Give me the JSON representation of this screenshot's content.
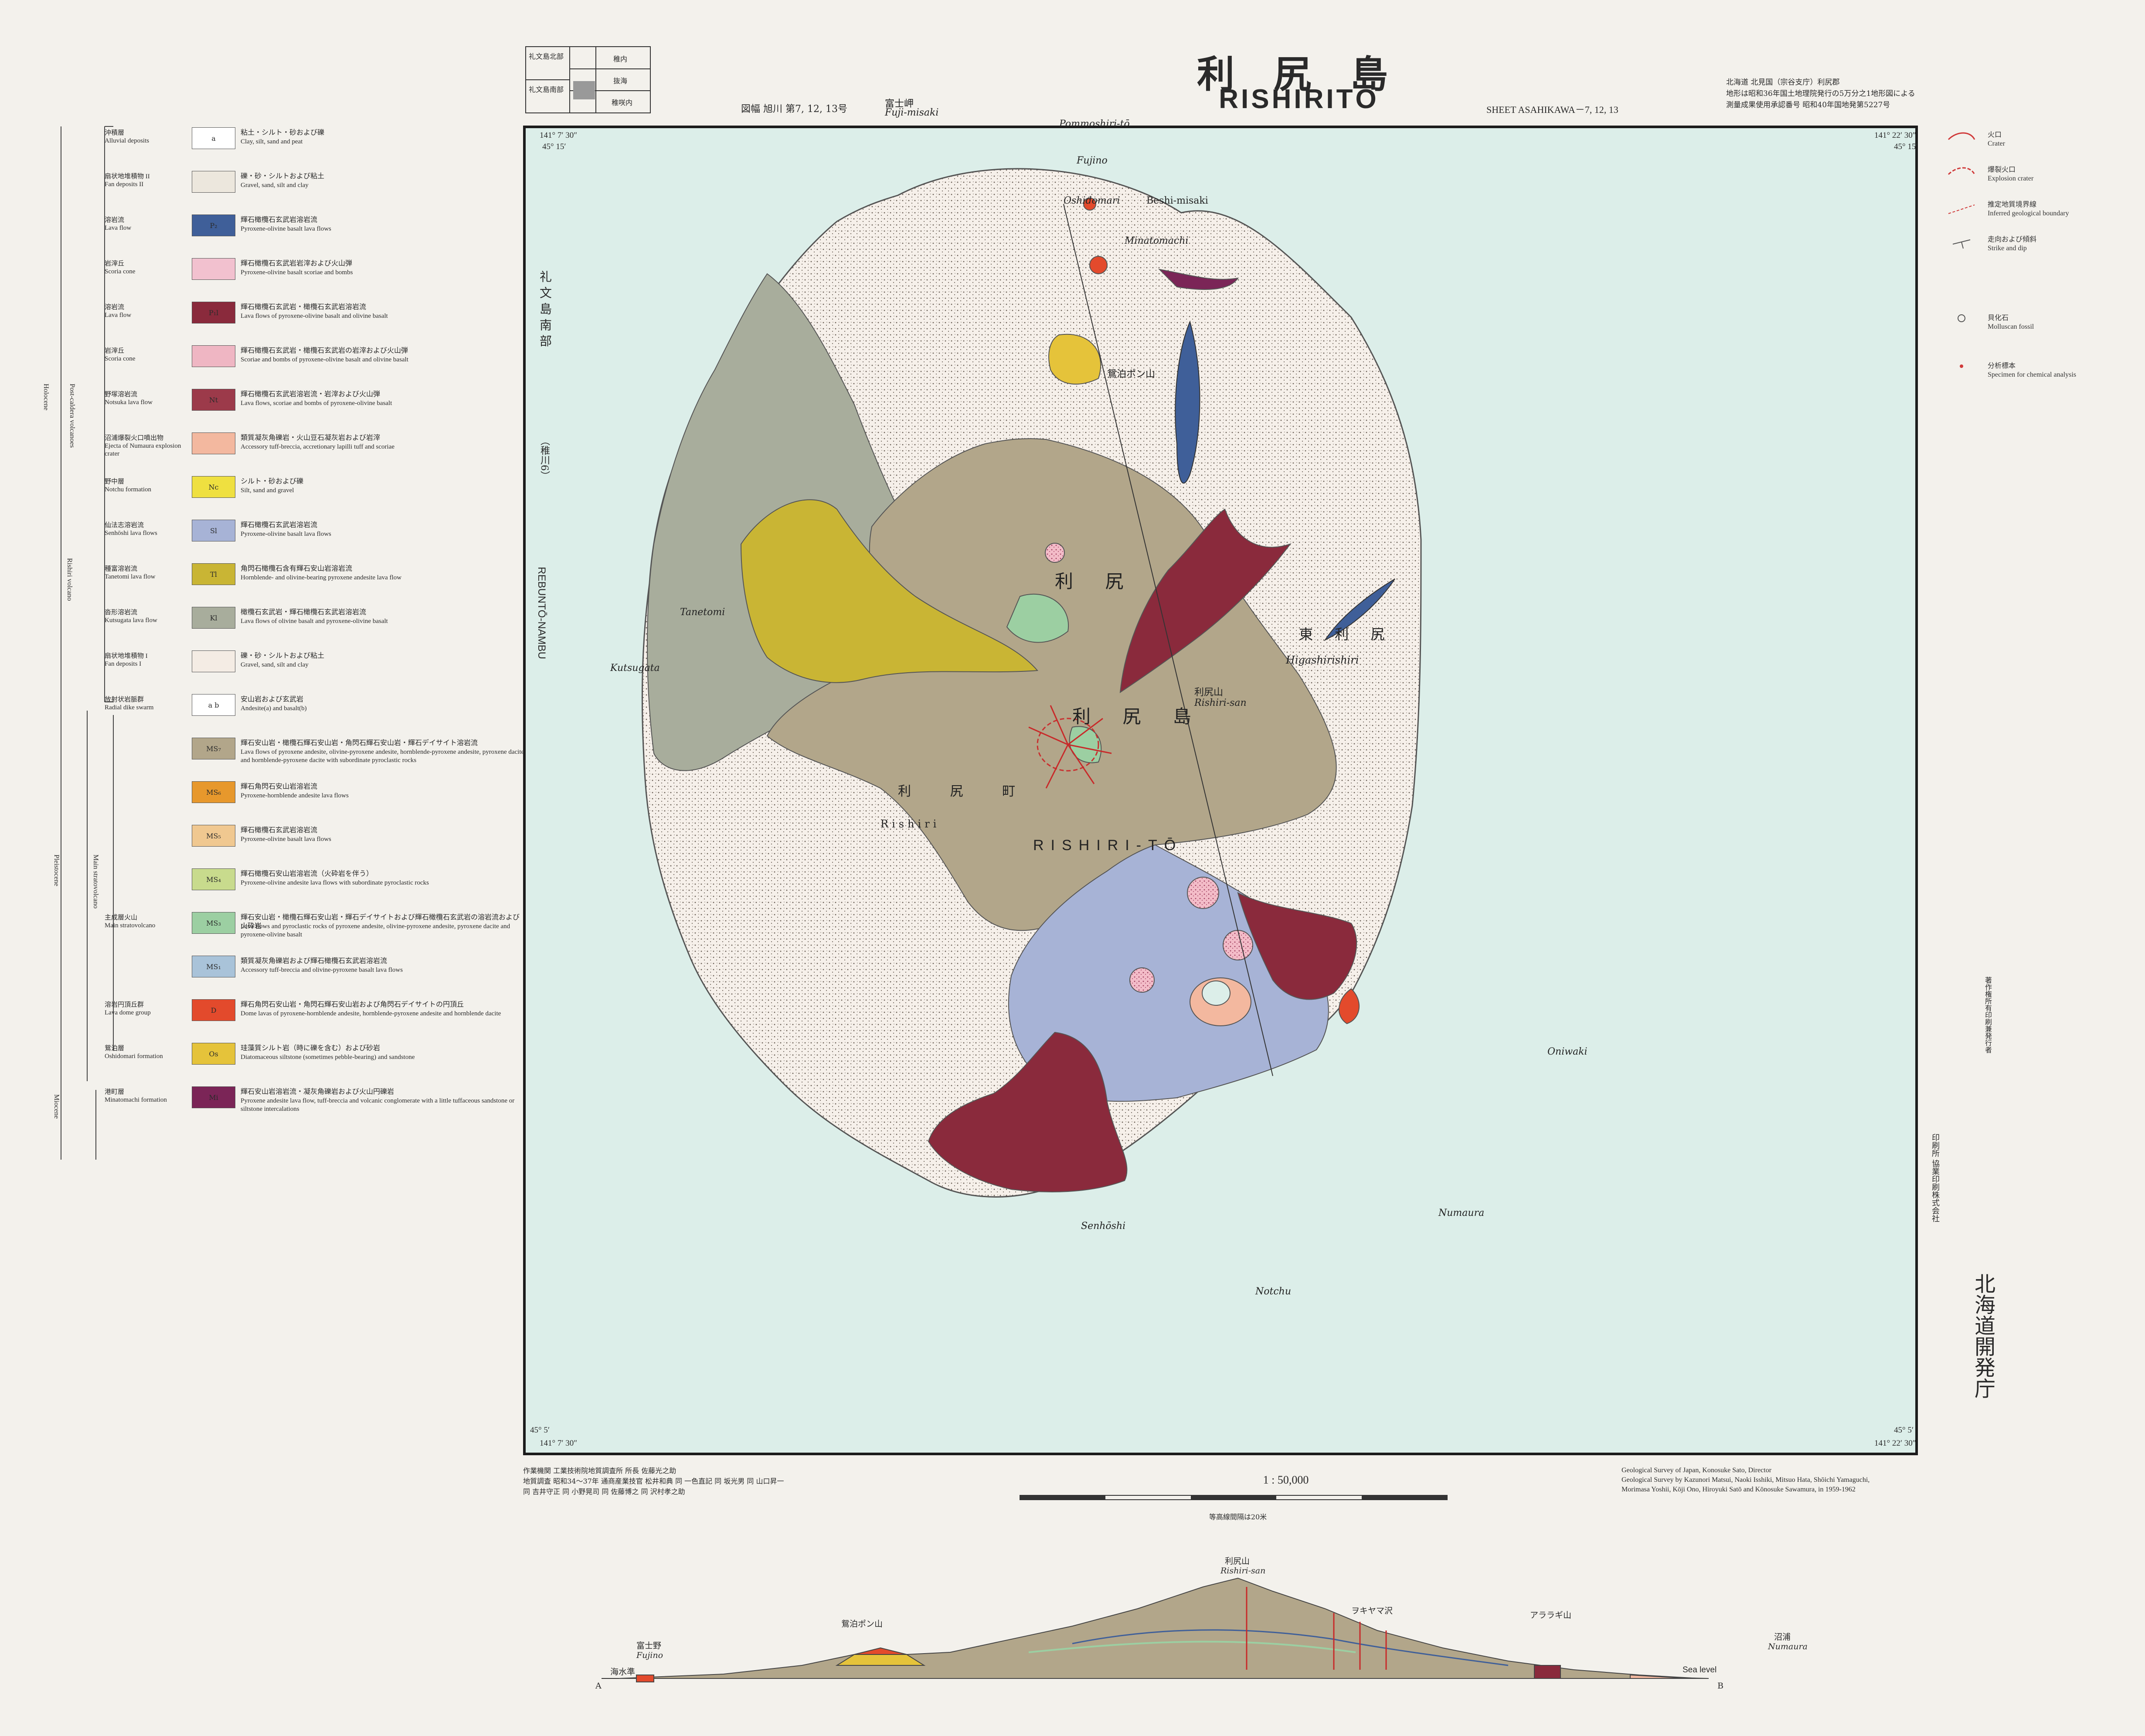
{
  "title": {
    "jp": "利 尻 島",
    "en": "RISHIRITŌ"
  },
  "sheet": {
    "jp": "図幅 旭川 第7, 12, 13号",
    "en": "SHEET ASAHIKAWA－7, 12, 13"
  },
  "pubnote": [
    "北海道 北見国（宗谷支庁）利尻郡",
    "地形は昭和36年国土地理院発行の5万分之1地形図による",
    "測量成果使用承認番号 昭和40年国地発第5227号"
  ],
  "index_box": {
    "cells": [
      "礼文島北部",
      "礼文島南部",
      "稚内",
      "抜海",
      "稚咲内"
    ]
  },
  "coordinates": {
    "top_left_lon": "141° 7′ 30″",
    "top_right_lon": "141° 22′ 30″",
    "top_lat": "45° 15′",
    "bottom_lat": "45° 5′",
    "bottom_left_lon": "141° 7′ 30″",
    "bottom_right_lon": "141° 22′ 30″"
  },
  "left_margin": {
    "adjacent_sheet_jp": "礼 文 島 南 部",
    "adjacent_sheet_no": "（稚川6）",
    "adjacent_sheet_en": "REBUNTŌ-NAMBU"
  },
  "map_labels": {
    "island_jp_1": "利 尻",
    "island_jp_2": "利 尻 島",
    "island_en": "RISHIRI-TŌ",
    "east_town_jp": "東 利 尻",
    "east_town_en": "Higashirishiri",
    "west_town_jp": "利 尻 町",
    "west_town_en": "Rishiri",
    "mountain_jp": "利尻山",
    "mountain_en": "Rishiri-san",
    "fujimisaki": "Fuji-misaki",
    "fujimisaki_jp": "富士岬",
    "pommoshiri": "Pommoshiri-tō",
    "fujino": "Fujino",
    "oshidomari": "Oshidomari",
    "beshi": "Beshi-misaki",
    "minatomachi": "Minatomachi",
    "kutsugata": "Kutsugata",
    "tanetomi": "Tanetomi",
    "oniwaki": "Oniwaki",
    "numaura": "Numaura",
    "senhoshi": "Senhōshi",
    "notchu": "Notchu",
    "ponyama": "鴛泊ポン山"
  },
  "legend": [
    {
      "sym": "a",
      "name_jp": "沖積層",
      "name_en": "Alluvial deposits",
      "desc_jp": "粘土・シルト・砂および礫",
      "desc_en": "Clay, silt, sand and peat",
      "color": "#ffffff"
    },
    {
      "sym": "",
      "name_jp": "扇状地堆積物 II",
      "name_en": "Fan deposits II",
      "desc_jp": "礫・砂・シルトおよび粘土",
      "desc_en": "Gravel, sand, silt and clay",
      "color": "#ece7dd"
    },
    {
      "sym": "P₂",
      "name_jp": "溶岩流",
      "name_en": "Lava flow",
      "desc_jp": "輝石橄欖石玄武岩溶岩流",
      "desc_en": "Pyroxene-olivine basalt lava flows",
      "color": "#3f5f99"
    },
    {
      "sym": "",
      "name_jp": "岩滓丘",
      "name_en": "Scoria cone",
      "desc_jp": "輝石橄欖石玄武岩岩滓および火山弾",
      "desc_en": "Pyroxene-olivine basalt scoriae and bombs",
      "color": "#f2c1cf"
    },
    {
      "sym": "P₁l",
      "name_jp": "溶岩流",
      "name_en": "Lava flow",
      "desc_jp": "輝石橄欖石玄武岩・橄欖石玄武岩溶岩流",
      "desc_en": "Lava flows of pyroxene-olivine basalt and olivine basalt",
      "color": "#8a2a3c"
    },
    {
      "sym": "",
      "name_jp": "岩滓丘",
      "name_en": "Scoria cone",
      "desc_jp": "輝石橄欖石玄武岩・橄欖石玄武岩の岩滓および火山弾",
      "desc_en": "Scoriae and bombs of pyroxene-olivine basalt and olivine basalt",
      "color": "#efb6c3"
    },
    {
      "sym": "Nt",
      "name_jp": "野塚溶岩流",
      "name_en": "Notsuka lava flow",
      "desc_jp": "輝石橄欖石玄武岩溶岩流・岩滓および火山弾",
      "desc_en": "Lava flows, scoriae and bombs of pyroxene-olivine basalt",
      "color": "#9c3a4a"
    },
    {
      "sym": "",
      "name_jp": "沼浦爆裂火口噴出物",
      "name_en": "Ejecta of Numaura explosion crater",
      "desc_jp": "類質凝灰角礫岩・火山豆石凝灰岩および岩滓",
      "desc_en": "Accessory tuff-breccia, accretionary lapilli tuff and scoriae",
      "color": "#f3b89f"
    },
    {
      "sym": "Nc",
      "name_jp": "野中層",
      "name_en": "Notchu formation",
      "desc_jp": "シルト・砂および礫",
      "desc_en": "Silt, sand and gravel",
      "color": "#efe040"
    },
    {
      "sym": "Sl",
      "name_jp": "仙法志溶岩流",
      "name_en": "Senhōshi lava flows",
      "desc_jp": "輝石橄欖石玄武岩溶岩流",
      "desc_en": "Pyroxene-olivine basalt lava flows",
      "color": "#a7b3d6"
    },
    {
      "sym": "Tl",
      "name_jp": "種富溶岩流",
      "name_en": "Tanetomi lava flow",
      "desc_jp": "角閃石橄欖石含有輝石安山岩溶岩流",
      "desc_en": "Hornblende- and olivine-bearing pyroxene andesite lava flow",
      "color": "#c9b534"
    },
    {
      "sym": "Kl",
      "name_jp": "沓形溶岩流",
      "name_en": "Kutsugata lava flow",
      "desc_jp": "橄欖石玄武岩・輝石橄欖石玄武岩溶岩流",
      "desc_en": "Lava flows of olivine basalt and pyroxene-olivine basalt",
      "color": "#a8ad9c"
    },
    {
      "sym": "",
      "name_jp": "扇状地堆積物 I",
      "name_en": "Fan deposits I",
      "desc_jp": "礫・砂・シルトおよび粘土",
      "desc_en": "Gravel, sand, silt and clay",
      "color": "#f4ece4"
    },
    {
      "sym": "a b",
      "name_jp": "放射状岩脈群",
      "name_en": "Radial dike swarm",
      "desc_jp": "安山岩および玄武岩",
      "desc_en": "Andesite(a) and basalt(b)",
      "color": "#ffffff"
    },
    {
      "sym": "MS₇",
      "name_jp": "",
      "name_en": "",
      "desc_jp": "輝石安山岩・橄欖石輝石安山岩・角閃石輝石安山岩・輝石デイサイト溶岩流",
      "desc_en": "Lava flows of pyroxene andesite, olivine-pyroxene andesite, hornblende-pyroxene andesite, pyroxene dacite and hornblende-pyroxene dacite with subordinate pyroclastic rocks",
      "color": "#b2a68a"
    },
    {
      "sym": "MS₆",
      "name_jp": "",
      "name_en": "",
      "desc_jp": "輝石角閃石安山岩溶岩流",
      "desc_en": "Pyroxene-hornblende andesite lava flows",
      "color": "#e7982c"
    },
    {
      "sym": "MS₅",
      "name_jp": "",
      "name_en": "",
      "desc_jp": "輝石橄欖石玄武岩溶岩流",
      "desc_en": "Pyroxene-olivine basalt lava flows",
      "color": "#f0c890"
    },
    {
      "sym": "MS₄",
      "name_jp": "",
      "name_en": "",
      "desc_jp": "輝石橄欖石安山岩溶岩流（火砕岩を伴う）",
      "desc_en": "Pyroxene-olivine andesite lava flows with subordinate pyroclastic rocks",
      "color": "#c8db8d"
    },
    {
      "sym": "MS₃",
      "name_jp": "主成層火山",
      "name_en": "Main stratovolcano",
      "desc_jp": "輝石安山岩・橄欖石輝石安山岩・輝石デイサイトおよび輝石橄欖石玄武岩の溶岩流および火砕岩",
      "desc_en": "Lava flows and pyroclastic rocks of pyroxene andesite, olivine-pyroxene andesite, pyroxene dacite and pyroxene-olivine basalt",
      "color": "#9ccfa2"
    },
    {
      "sym": "MS₁",
      "name_jp": "",
      "name_en": "",
      "desc_jp": "類質凝灰角礫岩および輝石橄欖石玄武岩溶岩流",
      "desc_en": "Accessory tuff-breccia and olivine-pyroxene basalt lava flows",
      "color": "#a9c3d9"
    },
    {
      "sym": "D",
      "name_jp": "溶岩円頂丘群",
      "name_en": "Lava dome group",
      "desc_jp": "輝石角閃石安山岩・角閃石輝石安山岩および角閃石デイサイトの円頂丘",
      "desc_en": "Dome lavas of pyroxene-hornblende andesite, hornblende-pyroxene andesite and hornblende dacite",
      "color": "#e34a2c"
    },
    {
      "sym": "Os",
      "name_jp": "鴛泊層",
      "name_en": "Oshidomari formation",
      "desc_jp": "珪藻質シルト岩（時に礫を含む）および砂岩",
      "desc_en": "Diatomaceous siltstone (sometimes pebble-bearing) and sandstone",
      "color": "#e5c33a"
    },
    {
      "sym": "Mi",
      "name_jp": "港町層",
      "name_en": "Minatomachi formation",
      "desc_jp": "輝石安山岩溶岩流・凝灰角礫岩および火山円礫岩",
      "desc_en": "Pyroxene andesite lava flow, tuff-breccia and volcanic conglomerate with a little tuffaceous sandstone or siltstone intercalations",
      "color": "#7b2557"
    }
  ],
  "group_labels": {
    "holocene": "Holocene",
    "pleistocene": "Pleistocene",
    "miocene": "Miocene",
    "rishiri_volcano": "Rishiri volcano",
    "main_strato": "Main stratovolcano",
    "postcaldera": "Post-caldera volcanoes"
  },
  "right_legend": [
    {
      "jp": "火口",
      "en": "Crater"
    },
    {
      "jp": "爆裂火口",
      "en": "Explosion crater"
    },
    {
      "jp": "推定地質境界線",
      "en": "Inferred geological boundary"
    },
    {
      "jp": "走向および傾斜",
      "en": "Strike and dip"
    },
    {
      "jp": "貝化石",
      "en": "Molluscan fossil"
    },
    {
      "jp": "分析標本",
      "en": "Specimen for chemical analysis"
    }
  ],
  "scale": {
    "text": "1 : 50,000",
    "note": "等高線間隔は20米"
  },
  "credits_left": [
    "作業機関 工業技術院地質調査所 所長 佐藤光之助",
    "地質調査 昭和34～37年 通商産業技官 松井和典 同 一色直記 同 坂光男 同 山口昇一",
    "同 吉井守正 同 小野晃司 同 佐藤博之 同 沢村孝之助"
  ],
  "credits_right": [
    "Geological Survey of Japan, Konosuke Sato, Director",
    "Geological Survey by Kazunori Matsui, Naoki Isshiki, Mitsuo Hata, Shōichi Yamaguchi,",
    "Morimasa Yoshii, Kōji Ono, Hiroyuki Satō and Kōnosuke Sawamura, in 1959-1962"
  ],
  "agency": "北海道開発庁",
  "printer": "印刷所 協業印刷株式会社",
  "side_strip": "著作権所有印刷兼発行者",
  "section": {
    "labels": {
      "A": "A",
      "B": "B",
      "sea_level_jp": "海水準",
      "sea_level_en": "Sea level",
      "fujino_jp": "富士野",
      "fujino_en": "Fujino",
      "ponyama": "鴛泊ポン山",
      "rishiri_jp": "利尻山",
      "rishiri_en": "Rishiri-san",
      "kotsu": "ヲキヤマ沢",
      "araragi": "アララギ山",
      "numaura_jp": "沼浦",
      "numaura_en": "Numaura"
    }
  }
}
